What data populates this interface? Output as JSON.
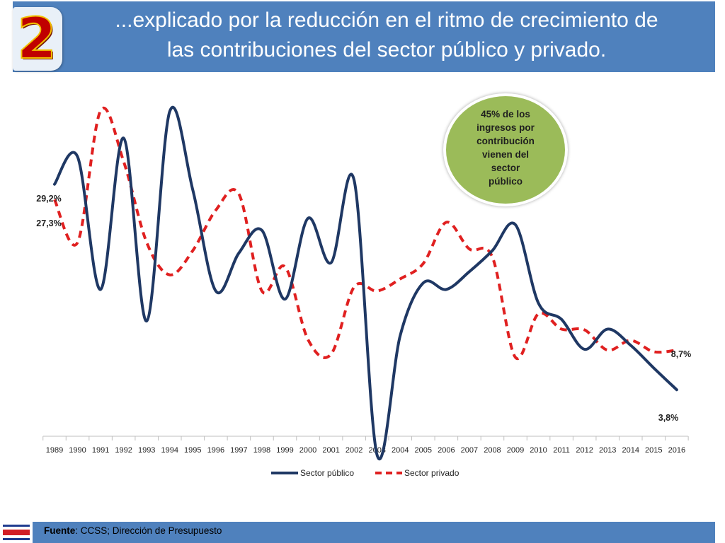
{
  "header": {
    "badge_number": "2",
    "title_line1": "...explicado por la reducción en el ritmo de crecimiento de",
    "title_line2": "las contribuciones del sector público y privado."
  },
  "callout": {
    "text": [
      "45% de los",
      "ingresos por",
      "contribución",
      "vienen del",
      "sector",
      "público"
    ]
  },
  "footer": {
    "source_label": "Fuente",
    "source_text": "CCSS; Dirección de Presupuesto"
  },
  "colors": {
    "header_bg": "#4f81bd",
    "series_public": "#1f3864",
    "series_private": "#e02020",
    "callout_bg": "#9bbb59"
  },
  "chart_data": {
    "type": "line",
    "title": "",
    "xlabel": "",
    "ylabel": "",
    "ylim": [
      -5,
      40
    ],
    "categories": [
      "1989",
      "1990",
      "1991",
      "1992",
      "1993",
      "1994",
      "1995",
      "1996",
      "1997",
      "1998",
      "1999",
      "2000",
      "2001",
      "2002",
      "2003",
      "2004",
      "2005",
      "2006",
      "2007",
      "2008",
      "2009",
      "2010",
      "2011",
      "2012",
      "2013",
      "2014",
      "2015",
      "2016"
    ],
    "series": [
      {
        "name": "Sector público",
        "style": "solid",
        "values": [
          29.2,
          32.6,
          16.2,
          34.9,
          12.3,
          38.2,
          28.5,
          16.0,
          20.7,
          23.5,
          15.0,
          25.0,
          19.5,
          29.7,
          -4.3,
          10.5,
          17.0,
          16.2,
          18.4,
          21.0,
          24.2,
          14.5,
          12.5,
          8.8,
          11.3,
          9.3,
          6.5,
          3.8
        ],
        "labels": {
          "0": "29,2%",
          "27": "3,8%"
        }
      },
      {
        "name": "Sector privado",
        "style": "dashed",
        "values": [
          27.3,
          22.0,
          38.3,
          32.0,
          22.0,
          18.0,
          21.0,
          26.0,
          28.0,
          16.0,
          19.0,
          10.0,
          8.2,
          16.5,
          16.0,
          17.5,
          19.4,
          24.5,
          21.2,
          20.2,
          7.8,
          13.2,
          11.3,
          11.2,
          8.7,
          9.9,
          8.5,
          8.7
        ],
        "labels": {
          "0": "27,3%",
          "27": "8,7%"
        }
      }
    ],
    "legend": {
      "position": "bottom-center",
      "entries": [
        "Sector público",
        "Sector privado"
      ]
    },
    "grid": false
  }
}
